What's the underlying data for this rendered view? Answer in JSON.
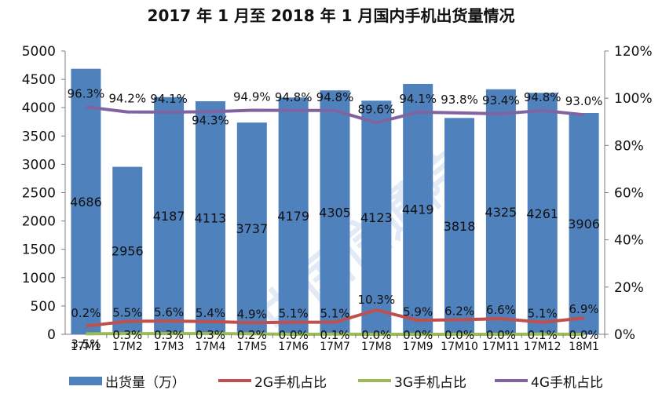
{
  "watermark": "中国信通院",
  "legend": {
    "bar_label": "出货量（万）",
    "s2g_label": "2G手机占比",
    "s3g_label": "3G手机占比",
    "s4g_label": "4G手机占比"
  },
  "colors": {
    "bar": "#4f81bd",
    "s2g": "#c0504d",
    "s3g": "#9bbb59",
    "s4g": "#8064a2"
  },
  "chart_data": {
    "type": "bar",
    "title": "2017 年 1 月至 2018 年 1 月国内手机出货量情况",
    "categories": [
      "17M1",
      "17M2",
      "17M3",
      "17M4",
      "17M5",
      "17M6",
      "17M7",
      "17M8",
      "17M9",
      "17M10",
      "17M11",
      "17M12",
      "18M1"
    ],
    "ylim_left": [
      0,
      5000
    ],
    "yticks_left": [
      "0",
      "500",
      "1000",
      "1500",
      "2000",
      "2500",
      "3000",
      "3500",
      "4000",
      "4500",
      "5000"
    ],
    "ylim_right": [
      0,
      120
    ],
    "yticks_right": [
      "0%",
      "20%",
      "40%",
      "60%",
      "80%",
      "100%",
      "120%"
    ],
    "grid": false,
    "legend_position": "bottom",
    "series": [
      {
        "name": "出货量（万）",
        "type": "bar",
        "values": [
          4686,
          2956,
          4187,
          4113,
          3737,
          4179,
          4305,
          4123,
          4419,
          3818,
          4325,
          4261,
          3906
        ],
        "labels": [
          "4686",
          "2956",
          "4187",
          "4113",
          "3737",
          "4179",
          "4305",
          "4123",
          "4419",
          "3818",
          "4325",
          "4261",
          "3906"
        ]
      },
      {
        "name": "2G手机占比",
        "type": "line",
        "axis": "right",
        "values": [
          3.5,
          5.5,
          5.6,
          5.4,
          4.9,
          5.1,
          5.1,
          10.3,
          5.9,
          6.2,
          6.6,
          5.1,
          6.9
        ],
        "labels": [
          "3.5%",
          "5.5%",
          "5.6%",
          "5.4%",
          "4.9%",
          "5.1%",
          "5.1%",
          "10.3%",
          "5.9%",
          "6.2%",
          "6.6%",
          "5.1%",
          "6.9%"
        ]
      },
      {
        "name": "3G手机占比",
        "type": "line",
        "axis": "right",
        "values": [
          0.2,
          0.3,
          0.3,
          0.3,
          0.2,
          0.0,
          0.1,
          0.0,
          0.0,
          0.0,
          0.0,
          0.1,
          0.0
        ],
        "labels": [
          "0.2%",
          "0.3%",
          "0.3%",
          "0.3%",
          "0.2%",
          "0.0%",
          "0.1%",
          "0.0%",
          "0.0%",
          "0.0%",
          "0.0%",
          "0.1%",
          "0.0%"
        ]
      },
      {
        "name": "4G手机占比",
        "type": "line",
        "axis": "right",
        "values": [
          96.3,
          94.2,
          94.1,
          94.3,
          94.9,
          94.8,
          94.8,
          89.6,
          94.1,
          93.8,
          93.4,
          94.8,
          93.0
        ],
        "labels": [
          "96.3%",
          "94.2%",
          "94.1%",
          "94.3%",
          "94.9%",
          "94.8%",
          "94.8%",
          "89.6%",
          "94.1%",
          "93.8%",
          "93.4%",
          "94.8%",
          "93.0%"
        ]
      }
    ]
  }
}
